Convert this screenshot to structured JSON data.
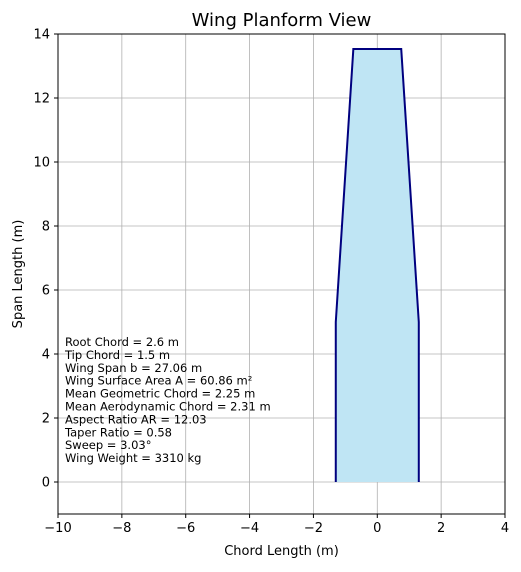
{
  "chart_data": {
    "type": "area",
    "title": "Wing Planform View",
    "xlabel": "Chord Length (m)",
    "ylabel": "Span Length (m)",
    "xlim": [
      -10,
      4
    ],
    "ylim": [
      -1,
      14
    ],
    "x_ticks": [
      -10,
      -8,
      -6,
      -4,
      -2,
      0,
      2,
      4
    ],
    "x_tick_labels": [
      "−10",
      "−8",
      "−6",
      "−4",
      "−2",
      "0",
      "2",
      "4"
    ],
    "y_ticks": [
      0,
      2,
      4,
      6,
      8,
      10,
      12,
      14
    ],
    "y_tick_labels": [
      "0",
      "2",
      "4",
      "6",
      "8",
      "10",
      "12",
      "14"
    ],
    "grid": true,
    "outline": {
      "x": [
        -1.3,
        -1.3,
        -0.75,
        0.75,
        1.3,
        1.3
      ],
      "y": [
        0,
        5.0,
        13.53,
        13.53,
        5.0,
        0
      ]
    },
    "fill_color": "#bfe5f4",
    "outline_color": "#00007f",
    "annotations": [
      "Root Chord = 2.6 m",
      "Tip Chord = 1.5 m",
      "Wing Span b = 27.06 m",
      "Wing Surface Area A = 60.86 m²",
      "Mean Geometric Chord = 2.25 m",
      "Mean Aerodynamic Chord = 2.31 m",
      "Aspect Ratio AR = 12.03",
      "Taper Ratio = 0.58",
      "Sweep = 3.03°",
      "Wing Weight = 3310 kg"
    ]
  }
}
